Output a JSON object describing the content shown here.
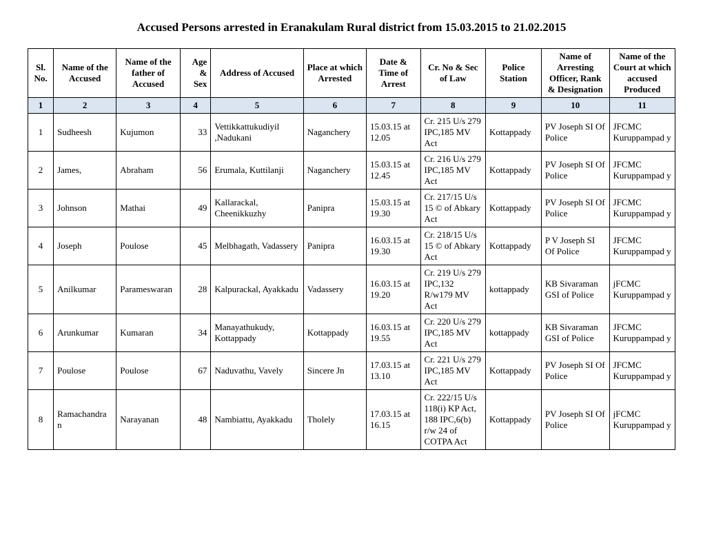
{
  "title": "Accused Persons arrested in Eranakulam Rural district from  15.03.2015 to 21.02.2015",
  "headers": {
    "sl": "Sl. No.",
    "name": "Name of the Accused",
    "father": "Name of the father of Accused",
    "age": "Age & Sex",
    "addr": "Address of Accused",
    "place": "Place at which Arrested",
    "date": "Date & Time of Arrest",
    "law": "Cr. No & Sec of Law",
    "station": "Police Station",
    "officer": "Name of Arresting Officer, Rank & Designation",
    "court": "Name of the Court at which accused Produced"
  },
  "colnums": [
    "1",
    "2",
    "3",
    "4",
    "5",
    "6",
    "7",
    "8",
    "9",
    "10",
    "11"
  ],
  "rows": [
    {
      "sl": "1",
      "name": "Sudheesh",
      "father": "Kujumon",
      "age": "33",
      "addr": "Vettikkattukudiyil ,Nadukani",
      "place": "Naganchery",
      "date": "15.03.15 at 12.05",
      "law": "Cr. 215 U/s 279 IPC,185 MV Act",
      "station": "Kottappady",
      "officer": "PV Joseph SI Of Police",
      "court": "JFCMC Kuruppampad y"
    },
    {
      "sl": "2",
      "name": "James,",
      "father": "Abraham",
      "age": "56",
      "addr": "Erumala, Kuttilanji",
      "place": "Naganchery",
      "date": "15.03.15 at 12.45",
      "law": "Cr. 216 U/s 279 IPC,185 MV Act",
      "station": "Kottappady",
      "officer": "PV Joseph SI Of Police",
      "court": "JFCMC Kuruppampad y"
    },
    {
      "sl": "3",
      "name": "Johnson",
      "father": "Mathai",
      "age": "49",
      "addr": "Kallarackal, Cheenikkuzhy",
      "place": "Panipra",
      "date": "15.03.15 at 19.30",
      "law": "Cr. 217/15 U/s 15 © of Abkary Act",
      "station": "Kottappady",
      "officer": "PV Joseph SI Of Police",
      "court": "JFCMC Kuruppampad y"
    },
    {
      "sl": "4",
      "name": "Joseph",
      "father": "Poulose",
      "age": "45",
      "addr": "Melbhagath, Vadassery",
      "place": "Panipra",
      "date": "16.03.15 at 19.30",
      "law": "Cr. 218/15 U/s 15 © of Abkary Act",
      "station": "Kottappady",
      "officer": " P V Joseph SI Of Police",
      "court": "JFCMC Kuruppampad y"
    },
    {
      "sl": "5",
      "name": "Anilkumar",
      "father": "Parameswaran",
      "age": "28",
      "addr": "Kalpurackal, Ayakkadu",
      "place": "Vadassery",
      "date": "16.03.15 at 19.20",
      "law": "Cr. 219 U/s 279 IPC,132 R/w179  MV Act",
      "station": "kottappady",
      "officer": "KB Sivaraman GSI of Police",
      "court": "jFCMC Kuruppampad y"
    },
    {
      "sl": "6",
      "name": "Arunkumar",
      "father": "Kumaran",
      "age": "34",
      "addr": "Manayathukudy, Kottappady",
      "place": "Kottappady",
      "date": "16.03.15 at 19.55",
      "law": "Cr. 220 U/s 279 IPC,185 MV Act",
      "station": "kottappady",
      "officer": "KB Sivaraman GSI of Police",
      "court": "JFCMC Kuruppampad y"
    },
    {
      "sl": "7",
      "name": "Poulose",
      "father": "Poulose",
      "age": "67",
      "addr": "Naduvathu, Vavely",
      "place": "Sincere Jn",
      "date": "17.03.15 at 13.10",
      "law": "Cr. 221 U/s 279 IPC,185 MV Act",
      "station": "Kottappady",
      "officer": "PV Joseph SI Of Police",
      "court": "JFCMC Kuruppampad y"
    },
    {
      "sl": "8",
      "name": "Ramachandra n",
      "father": "Narayanan",
      "age": "48",
      "addr": "Nambiattu, Ayakkadu",
      "place": "Tholely",
      "date": "17.03.15 at 16.15",
      "law": "Cr. 222/15 U/s 118(i) KP Act, 188 IPC,6(b) r/w 24 of COTPA Act",
      "station": "Kottappady",
      "officer": "PV Joseph SI Of Police",
      "court": "jFCMC Kuruppampad y"
    }
  ]
}
